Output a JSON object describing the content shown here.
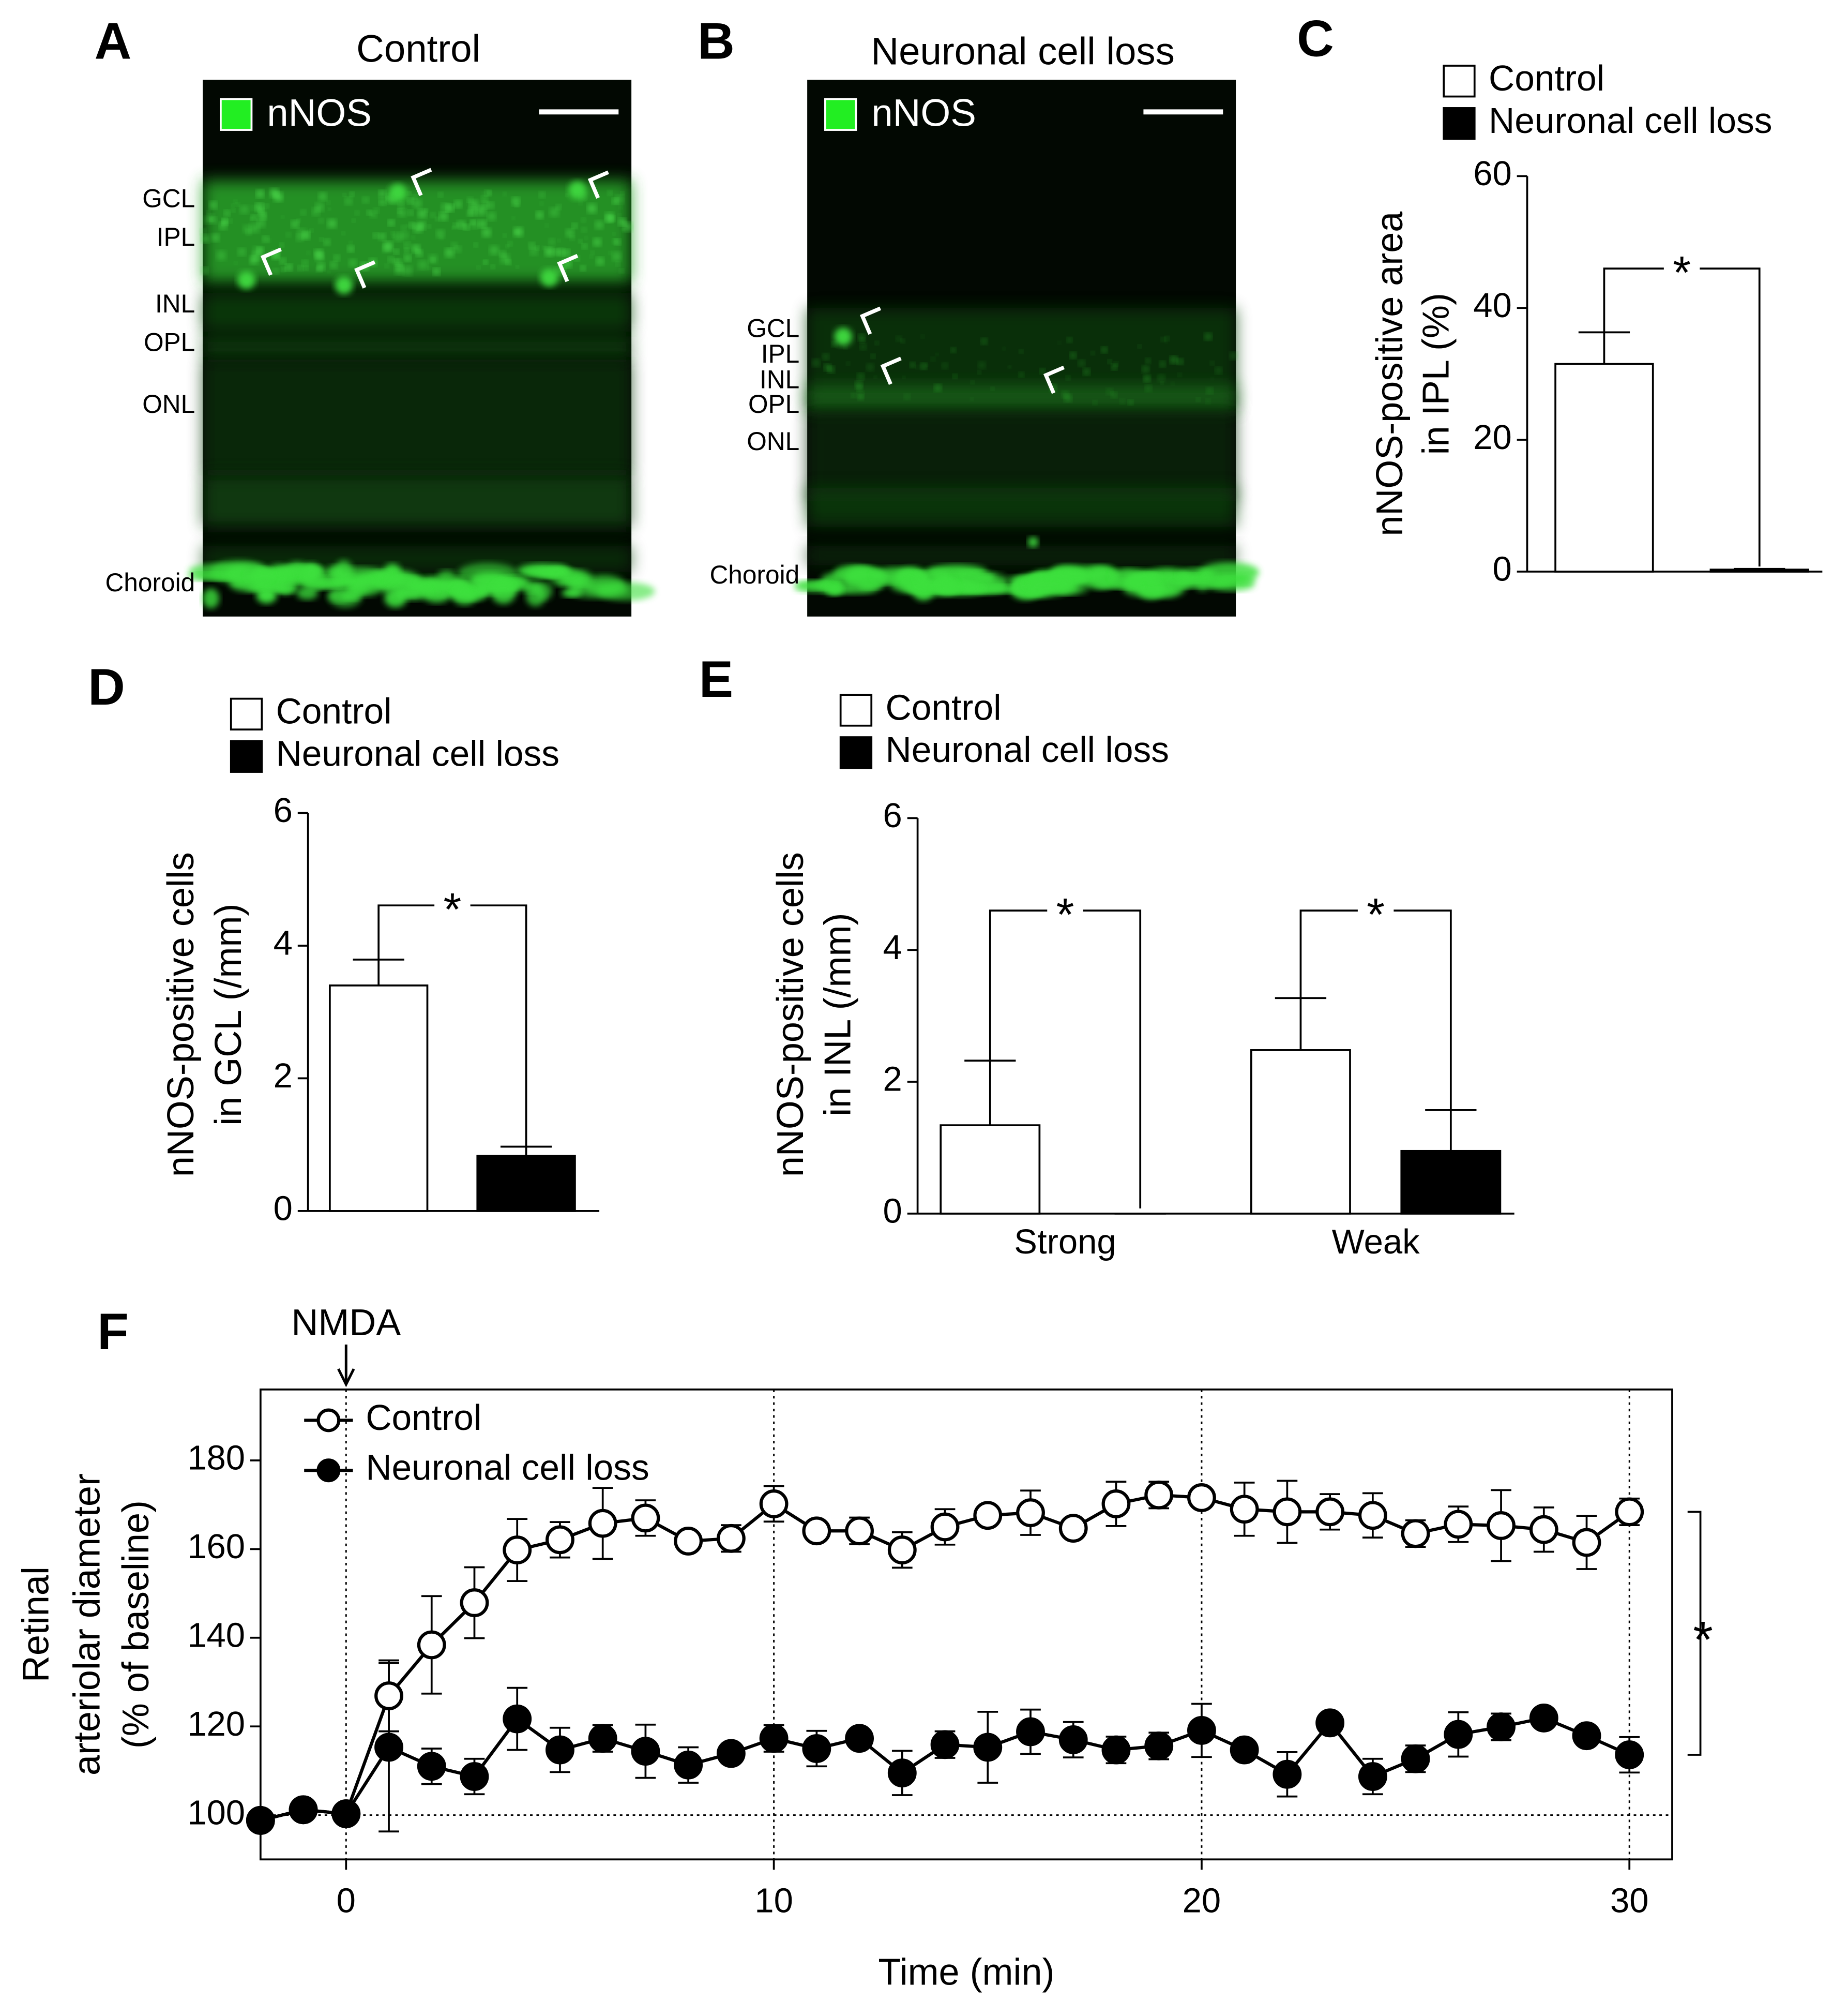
{
  "panels": [
    {
      "letter": "A",
      "title": "Control",
      "stain": "nNOS",
      "layers": [
        "GCL",
        "IPL",
        "INL",
        "OPL",
        "ONL",
        "Choroid"
      ]
    },
    {
      "letter": "B",
      "title": "Neuronal cell loss",
      "stain": "nNOS",
      "layers": [
        "GCL",
        "IPL",
        "INL",
        "OPL",
        "ONL",
        "Choroid"
      ]
    }
  ],
  "chart_data": [
    {
      "type": "bar",
      "letter": "C",
      "ylabel": [
        "nNOS-positive area",
        "in IPL (%)"
      ],
      "categories": [
        null
      ],
      "series": [
        {
          "name": "Control",
          "color": "#ffffff",
          "values": [
            31.5
          ],
          "errors": [
            4.8
          ]
        },
        {
          "name": "Neuronal cell loss",
          "color": "#000000",
          "values": [
            0.3
          ],
          "errors": [
            0.1
          ]
        }
      ],
      "ylim": [
        0,
        60
      ],
      "yticks": [
        0,
        20,
        40,
        60
      ],
      "annotations": [
        "*"
      ],
      "legend": "top"
    },
    {
      "type": "bar",
      "letter": "D",
      "ylabel": [
        "nNOS-positive cells",
        "in GCL (/mm)"
      ],
      "categories": [
        null
      ],
      "series": [
        {
          "name": "Control",
          "color": "#ffffff",
          "values": [
            3.4
          ],
          "errors": [
            0.39
          ]
        },
        {
          "name": "Neuronal cell loss",
          "color": "#000000",
          "values": [
            0.83
          ],
          "errors": [
            0.14
          ]
        }
      ],
      "ylim": [
        0,
        6
      ],
      "yticks": [
        0,
        2,
        4,
        6
      ],
      "annotations": [
        "*"
      ],
      "legend": "top"
    },
    {
      "type": "bar",
      "letter": "E",
      "ylabel": [
        "nNOS-positive cells",
        "in INL (/mm)"
      ],
      "categories": [
        "Strong",
        "Weak"
      ],
      "series": [
        {
          "name": "Control",
          "color": "#ffffff",
          "values": [
            1.34,
            2.48
          ],
          "errors": [
            0.98,
            0.79
          ]
        },
        {
          "name": "Neuronal cell loss",
          "color": "#000000",
          "values": [
            0,
            0.95
          ],
          "errors": [
            0,
            0.62
          ]
        }
      ],
      "ylim": [
        0,
        6
      ],
      "yticks": [
        0,
        2,
        4,
        6
      ],
      "annotations": [
        "*",
        "*"
      ],
      "legend": "top"
    },
    {
      "type": "line",
      "letter": "F",
      "xlabel": "Time (min)",
      "ylabel": [
        "Retinal",
        "arteriolar diameter",
        "(% of baseline)"
      ],
      "x": [
        -2,
        -1,
        0,
        1,
        2,
        3,
        4,
        5,
        6,
        7,
        8,
        9,
        10,
        11,
        12,
        13,
        14,
        15,
        16,
        17,
        18,
        19,
        20,
        21,
        22,
        23,
        24,
        25,
        26,
        27,
        28,
        29,
        30
      ],
      "series": [
        {
          "name": "Control",
          "color": "#ffffff",
          "values": [
            98.8,
            101.2,
            100.3,
            126.9,
            138.4,
            147.9,
            159.8,
            162.1,
            165.8,
            167.0,
            161.8,
            162.4,
            170.2,
            164.1,
            164.1,
            159.8,
            165.0,
            167.6,
            168.2,
            164.7,
            170.2,
            172.2,
            171.6,
            169.0,
            168.4,
            168.4,
            167.6,
            163.5,
            165.6,
            165.3,
            164.4,
            161.5,
            168.4
          ],
          "errors": [
            1,
            1,
            1,
            8,
            11,
            8,
            7,
            4,
            8,
            4,
            2,
            3,
            4,
            2,
            3,
            4,
            4,
            2,
            5,
            2,
            5,
            3,
            2,
            6,
            7,
            4,
            5,
            3,
            4,
            8,
            5,
            6,
            3
          ]
        },
        {
          "name": "Neuronal cell loss",
          "color": "#000000",
          "values": [
            98.8,
            101.2,
            100.3,
            115.3,
            111.0,
            108.7,
            121.7,
            114.7,
            117.3,
            114.4,
            111.3,
            113.9,
            117.3,
            115.0,
            117.3,
            109.5,
            115.9,
            115.3,
            118.8,
            117.0,
            114.7,
            115.6,
            119.1,
            114.7,
            109.2,
            120.8,
            108.7,
            112.7,
            118.2,
            119.9,
            121.9,
            117.9,
            113.6
          ],
          "errors": [
            1,
            1,
            1,
            19,
            4,
            4,
            7,
            5,
            3,
            6,
            4,
            2,
            3,
            4,
            2,
            5,
            3,
            8,
            5,
            4,
            3,
            3,
            6,
            2,
            5,
            2,
            4,
            3,
            5,
            3,
            2,
            2,
            4
          ]
        }
      ],
      "xlim": [
        -2,
        31
      ],
      "ylim": [
        90,
        196
      ],
      "xticks": [
        0,
        10,
        20,
        30
      ],
      "yticks": [
        100,
        120,
        140,
        160,
        180
      ],
      "xgrid": true,
      "baseline": 100,
      "event": {
        "label": "NMDA",
        "x": 0
      },
      "annotations": [
        "*"
      ],
      "legend": "upper-left"
    }
  ]
}
